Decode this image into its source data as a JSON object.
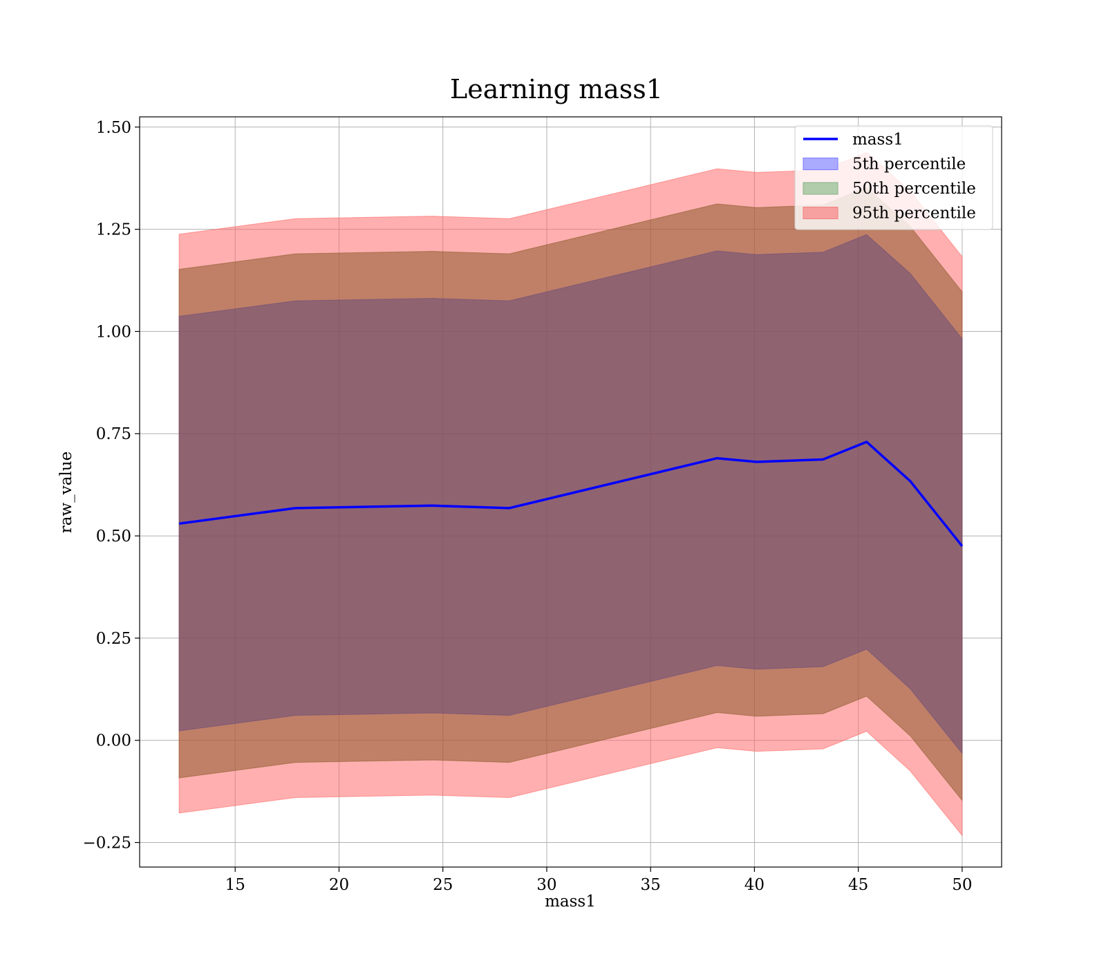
{
  "chart_data": {
    "type": "line",
    "title": "Learning mass1",
    "xlabel": "mass1",
    "ylabel": "raw_value",
    "xlim": [
      10.4,
      51.9
    ],
    "ylim": [
      -0.31,
      1.525
    ],
    "xticks": [
      15,
      20,
      25,
      30,
      35,
      40,
      45,
      50
    ],
    "yticks": [
      -0.25,
      0.0,
      0.25,
      0.5,
      0.75,
      1.0,
      1.25,
      1.5
    ],
    "xtick_labels": [
      "15",
      "20",
      "25",
      "30",
      "35",
      "40",
      "45",
      "50"
    ],
    "ytick_labels": [
      "−0.25",
      "0.00",
      "0.25",
      "0.50",
      "0.75",
      "1.00",
      "1.25",
      "1.50"
    ],
    "grid": true,
    "legend_position": "top-right",
    "x": [
      12.3,
      17.9,
      24.5,
      28.2,
      38.2,
      40.1,
      43.3,
      45.4,
      47.5,
      50.0
    ],
    "line": {
      "name": "mass1",
      "color": "#0000ff",
      "values": [
        0.53,
        0.568,
        0.574,
        0.568,
        0.69,
        0.681,
        0.687,
        0.73,
        0.634,
        0.475
      ]
    },
    "bands": [
      {
        "name": "95th percentile",
        "color": "#ff6666",
        "lower": [
          -0.178,
          -0.14,
          -0.134,
          -0.14,
          -0.018,
          -0.027,
          -0.021,
          0.022,
          -0.075,
          -0.233
        ],
        "upper": [
          1.238,
          1.276,
          1.282,
          1.276,
          1.398,
          1.389,
          1.395,
          1.438,
          1.343,
          1.183
        ]
      },
      {
        "name": "50th percentile",
        "color": "#8b5a2b",
        "lower": [
          -0.092,
          -0.054,
          -0.048,
          -0.054,
          0.068,
          0.059,
          0.065,
          0.108,
          0.011,
          -0.147
        ],
        "upper": [
          1.152,
          1.19,
          1.196,
          1.19,
          1.312,
          1.303,
          1.309,
          1.352,
          1.257,
          1.097
        ]
      },
      {
        "name": "5th percentile",
        "color": "#6a4a7a",
        "lower": [
          0.023,
          0.061,
          0.067,
          0.061,
          0.183,
          0.174,
          0.18,
          0.223,
          0.126,
          -0.032
        ],
        "upper": [
          1.037,
          1.075,
          1.081,
          1.075,
          1.197,
          1.188,
          1.194,
          1.237,
          1.142,
          0.982
        ]
      }
    ],
    "legend": [
      {
        "label": "mass1",
        "kind": "line",
        "color": "#0000ff"
      },
      {
        "label": "5th percentile",
        "kind": "patch",
        "color": "#aaaaff",
        "edge": "#7a7aff"
      },
      {
        "label": "50th percentile",
        "kind": "patch",
        "color": "#b0ccaa",
        "edge": "#88b088"
      },
      {
        "label": "95th percentile",
        "kind": "patch",
        "color": "#f7a0a0",
        "edge": "#f08080"
      }
    ]
  }
}
